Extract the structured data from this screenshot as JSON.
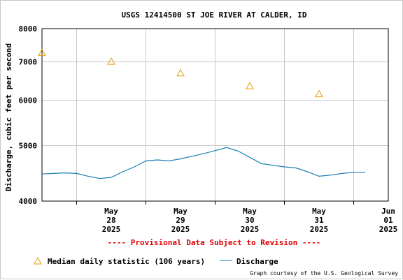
{
  "chart_data": {
    "type": "line",
    "title": "USGS 12414500 ST JOE RIVER AT CALDER, ID",
    "xlabel": "",
    "ylabel": "Discharge, cubic feet per second",
    "y_scale": "log",
    "ylim": [
      4000,
      8000
    ],
    "y_ticks": [
      "8000",
      "7000",
      "6000",
      "5000",
      "4000"
    ],
    "y_tick_values": [
      8000,
      7000,
      6000,
      5000,
      4000
    ],
    "xlim": [
      "2025-05-27 12:00",
      "2025-06-01 12:00"
    ],
    "x_ticks": [
      {
        "date": "2025-05-28",
        "month": "May",
        "day": "28",
        "year": "2025"
      },
      {
        "date": "2025-05-29",
        "month": "May",
        "day": "29",
        "year": "2025"
      },
      {
        "date": "2025-05-30",
        "month": "May",
        "day": "30",
        "year": "2025"
      },
      {
        "date": "2025-05-31",
        "month": "May",
        "day": "31",
        "year": "2025"
      },
      {
        "date": "2025-06-01",
        "month": "Jun",
        "day": "01",
        "year": "2025"
      }
    ],
    "grid": true,
    "series": [
      {
        "name": "Discharge",
        "color": "#1a7eb0",
        "marker": "line",
        "points": [
          [
            "2025-05-27 12:00",
            4460
          ],
          [
            "2025-05-27 16:00",
            4470
          ],
          [
            "2025-05-27 20:00",
            4480
          ],
          [
            "2025-05-28 00:00",
            4470
          ],
          [
            "2025-05-28 04:00",
            4420
          ],
          [
            "2025-05-28 08:00",
            4380
          ],
          [
            "2025-05-28 12:00",
            4400
          ],
          [
            "2025-05-28 16:00",
            4500
          ],
          [
            "2025-05-28 20:00",
            4590
          ],
          [
            "2025-05-29 00:00",
            4700
          ],
          [
            "2025-05-29 04:00",
            4720
          ],
          [
            "2025-05-29 08:00",
            4700
          ],
          [
            "2025-05-29 12:00",
            4740
          ],
          [
            "2025-05-29 16:00",
            4790
          ],
          [
            "2025-05-29 20:00",
            4840
          ],
          [
            "2025-05-30 00:00",
            4900
          ],
          [
            "2025-05-30 04:00",
            4960
          ],
          [
            "2025-05-30 08:00",
            4890
          ],
          [
            "2025-05-30 12:00",
            4770
          ],
          [
            "2025-05-30 16:00",
            4650
          ],
          [
            "2025-05-30 20:00",
            4620
          ],
          [
            "2025-05-31 00:00",
            4590
          ],
          [
            "2025-05-31 04:00",
            4570
          ],
          [
            "2025-05-31 08:00",
            4500
          ],
          [
            "2025-05-31 12:00",
            4420
          ],
          [
            "2025-05-31 16:00",
            4440
          ],
          [
            "2025-05-31 20:00",
            4470
          ],
          [
            "2025-06-01 00:00",
            4490
          ],
          [
            "2025-06-01 04:00",
            4490
          ]
        ]
      },
      {
        "name": "Median daily statistic (106 years)",
        "color": "#e0a000",
        "marker": "triangle",
        "points": [
          [
            "2025-05-27 12:00",
            7270
          ],
          [
            "2025-05-28 12:00",
            7020
          ],
          [
            "2025-05-29 12:00",
            6700
          ],
          [
            "2025-05-30 12:00",
            6360
          ],
          [
            "2025-05-31 12:00",
            6160
          ]
        ]
      }
    ],
    "legend_position": "bottom-left"
  },
  "notice": "---- Provisional Data Subject to Revision ----",
  "legend": {
    "median_label": "Median daily statistic (106 years)",
    "discharge_label": "Discharge"
  },
  "credit": "Graph courtesy of the U.S. Geological Survey",
  "colors": {
    "discharge": "#1a7eb0",
    "median": "#e0a000",
    "notice": "#e00000",
    "grid": "#c8c8c8"
  }
}
